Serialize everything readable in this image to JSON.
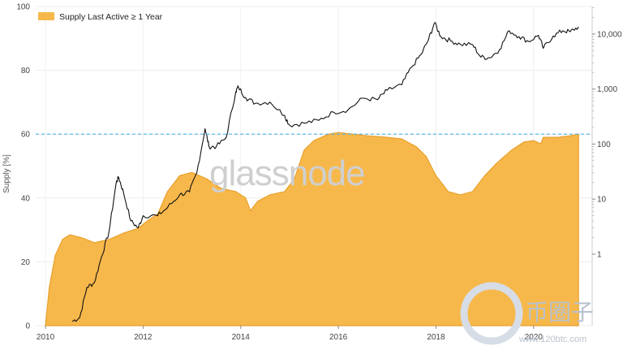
{
  "chart_data": {
    "type": "area",
    "legend": {
      "label": "Supply Last Active ≥ 1 Year",
      "position": "top-left"
    },
    "left_axis": {
      "label": "Supply [%]",
      "ticks": [
        0,
        20,
        40,
        60,
        80,
        100
      ],
      "range": [
        0,
        100
      ]
    },
    "right_axis": {
      "scale": "log",
      "ticks": [
        "1",
        "10",
        "100",
        "1,000",
        "10,000"
      ],
      "tick_values": [
        1,
        10,
        100,
        1000,
        10000
      ]
    },
    "x_axis": {
      "ticks": [
        "2010",
        "2012",
        "2014",
        "2016",
        "2018",
        "2020"
      ],
      "range": [
        2009.8,
        2021.2
      ]
    },
    "reference_line": {
      "y": 60,
      "color": "#4fb3e8",
      "style": "dashed"
    },
    "grid": true,
    "colors": {
      "area": "#f7b84b",
      "area_edge": "#e8a02a",
      "price": "#111111"
    },
    "series": [
      {
        "name": "Supply Last Active ≥ 1 Year",
        "axis": "left",
        "points": [
          [
            2010.0,
            0
          ],
          [
            2010.08,
            12
          ],
          [
            2010.2,
            22
          ],
          [
            2010.35,
            27
          ],
          [
            2010.5,
            28.5
          ],
          [
            2010.75,
            27.5
          ],
          [
            2011.0,
            26
          ],
          [
            2011.3,
            27
          ],
          [
            2011.6,
            29
          ],
          [
            2011.9,
            30.5
          ],
          [
            2012.1,
            33
          ],
          [
            2012.3,
            35
          ],
          [
            2012.5,
            42
          ],
          [
            2012.75,
            47
          ],
          [
            2013.0,
            48
          ],
          [
            2013.3,
            46
          ],
          [
            2013.6,
            43
          ],
          [
            2013.9,
            42
          ],
          [
            2014.1,
            40
          ],
          [
            2014.2,
            36
          ],
          [
            2014.35,
            39
          ],
          [
            2014.6,
            41
          ],
          [
            2014.9,
            42
          ],
          [
            2015.1,
            46
          ],
          [
            2015.3,
            55
          ],
          [
            2015.5,
            58
          ],
          [
            2015.8,
            60
          ],
          [
            2016.0,
            60.5
          ],
          [
            2016.3,
            60
          ],
          [
            2016.6,
            59.5
          ],
          [
            2017.0,
            59
          ],
          [
            2017.3,
            58.5
          ],
          [
            2017.6,
            56
          ],
          [
            2017.8,
            53
          ],
          [
            2018.0,
            47
          ],
          [
            2018.25,
            42
          ],
          [
            2018.5,
            41
          ],
          [
            2018.75,
            42
          ],
          [
            2019.0,
            47
          ],
          [
            2019.25,
            51
          ],
          [
            2019.4,
            53
          ],
          [
            2019.55,
            55
          ],
          [
            2019.8,
            57.5
          ],
          [
            2020.0,
            58
          ],
          [
            2020.15,
            57
          ],
          [
            2020.2,
            59
          ],
          [
            2020.5,
            59
          ],
          [
            2020.75,
            59.5
          ],
          [
            2020.92,
            60
          ]
        ]
      },
      {
        "name": "Price",
        "axis": "right",
        "points": [
          [
            2010.55,
            0.06
          ],
          [
            2010.7,
            0.07
          ],
          [
            2010.85,
            0.25
          ],
          [
            2011.0,
            0.3
          ],
          [
            2011.15,
            0.9
          ],
          [
            2011.3,
            2.5
          ],
          [
            2011.45,
            20
          ],
          [
            2011.5,
            25
          ],
          [
            2011.6,
            13
          ],
          [
            2011.75,
            4
          ],
          [
            2011.9,
            3
          ],
          [
            2012.0,
            5
          ],
          [
            2012.3,
            5
          ],
          [
            2012.5,
            7
          ],
          [
            2012.75,
            12
          ],
          [
            2012.95,
            13.5
          ],
          [
            2013.1,
            30
          ],
          [
            2013.27,
            190
          ],
          [
            2013.35,
            90
          ],
          [
            2013.5,
            90
          ],
          [
            2013.7,
            130
          ],
          [
            2013.9,
            900
          ],
          [
            2013.95,
            1100
          ],
          [
            2014.1,
            700
          ],
          [
            2014.3,
            550
          ],
          [
            2014.6,
            580
          ],
          [
            2014.9,
            330
          ],
          [
            2015.0,
            220
          ],
          [
            2015.3,
            240
          ],
          [
            2015.6,
            270
          ],
          [
            2015.9,
            380
          ],
          [
            2016.2,
            420
          ],
          [
            2016.5,
            680
          ],
          [
            2016.8,
            640
          ],
          [
            2017.0,
            950
          ],
          [
            2017.3,
            1200
          ],
          [
            2017.5,
            2500
          ],
          [
            2017.7,
            4300
          ],
          [
            2017.85,
            8000
          ],
          [
            2017.97,
            16000
          ],
          [
            2018.1,
            9000
          ],
          [
            2018.3,
            7500
          ],
          [
            2018.5,
            6500
          ],
          [
            2018.75,
            6400
          ],
          [
            2018.92,
            3800
          ],
          [
            2019.1,
            3700
          ],
          [
            2019.3,
            5200
          ],
          [
            2019.5,
            11500
          ],
          [
            2019.7,
            9000
          ],
          [
            2019.9,
            7300
          ],
          [
            2020.1,
            9500
          ],
          [
            2020.2,
            5500
          ],
          [
            2020.4,
            9200
          ],
          [
            2020.6,
            11500
          ],
          [
            2020.75,
            11000
          ],
          [
            2020.92,
            13500
          ]
        ]
      }
    ]
  },
  "watermark": {
    "brand": "glassnode",
    "corner_title": "币圈子",
    "corner_url": "www.120btc.com"
  }
}
